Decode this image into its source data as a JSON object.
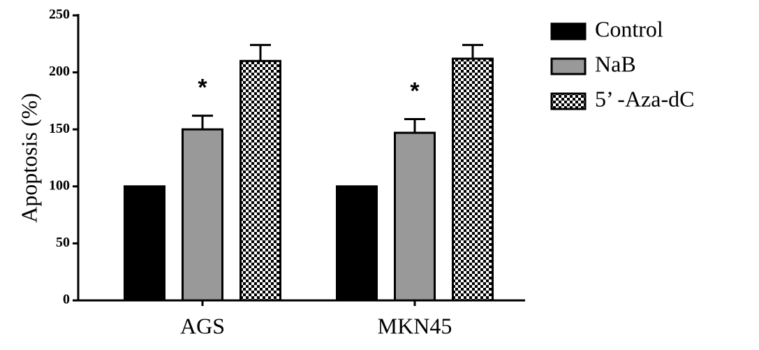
{
  "chart_data": {
    "type": "bar",
    "y_label": "Apoptosis (%)",
    "categories": [
      "AGS",
      "MKN45"
    ],
    "series": [
      {
        "name": "Control",
        "color": "#000000",
        "values": [
          100,
          100
        ],
        "errors": [
          0,
          0
        ]
      },
      {
        "name": "NaB",
        "color": "#999999",
        "values": [
          150,
          147
        ],
        "errors": [
          12,
          12
        ],
        "significance": [
          "*",
          "*"
        ]
      },
      {
        "name": "5’ -Aza-dC",
        "color": "#000000",
        "pattern": "checkerboard",
        "values": [
          210,
          212
        ],
        "errors": [
          14,
          12
        ]
      }
    ],
    "ylim": [
      0,
      250
    ],
    "yticks": [
      0,
      50,
      100,
      150,
      200,
      250
    ],
    "grid": false,
    "legend": "right"
  }
}
